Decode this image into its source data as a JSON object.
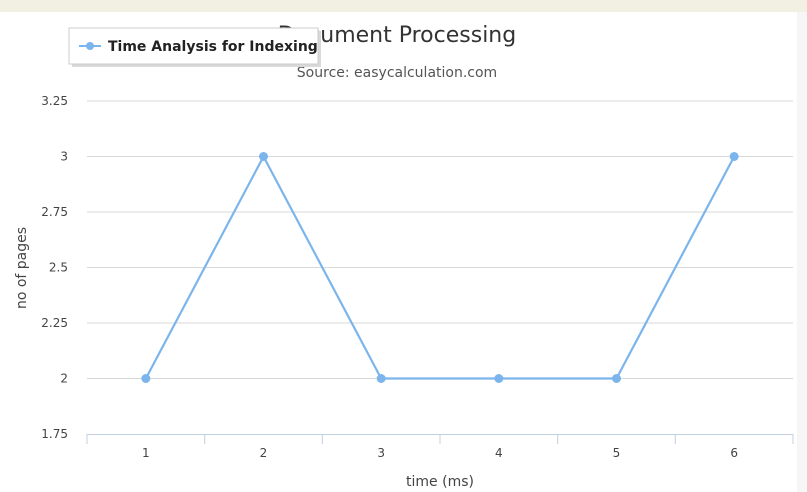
{
  "chart_data": {
    "type": "line",
    "title": "Document Processing",
    "subtitle": "Source: easycalculation.com",
    "xlabel": "time (ms)",
    "ylabel": "no of pages",
    "x": [
      1,
      2,
      3,
      4,
      5,
      6
    ],
    "x_tick_labels": [
      "1",
      "2",
      "3",
      "4",
      "5",
      "6"
    ],
    "y_tick_labels": [
      "1.75",
      "2",
      "2.25",
      "2.5",
      "2.75",
      "3",
      "3.25"
    ],
    "y_ticks": [
      1.75,
      2,
      2.25,
      2.5,
      2.75,
      3,
      3.25
    ],
    "ylim": [
      1.75,
      3.25
    ],
    "grid": true,
    "legend_placement": "top-left",
    "series": [
      {
        "name": "Time Analysis for Indexing",
        "values": [
          2,
          3,
          2,
          2,
          2,
          3
        ],
        "color": "#7cb5ec"
      }
    ]
  }
}
